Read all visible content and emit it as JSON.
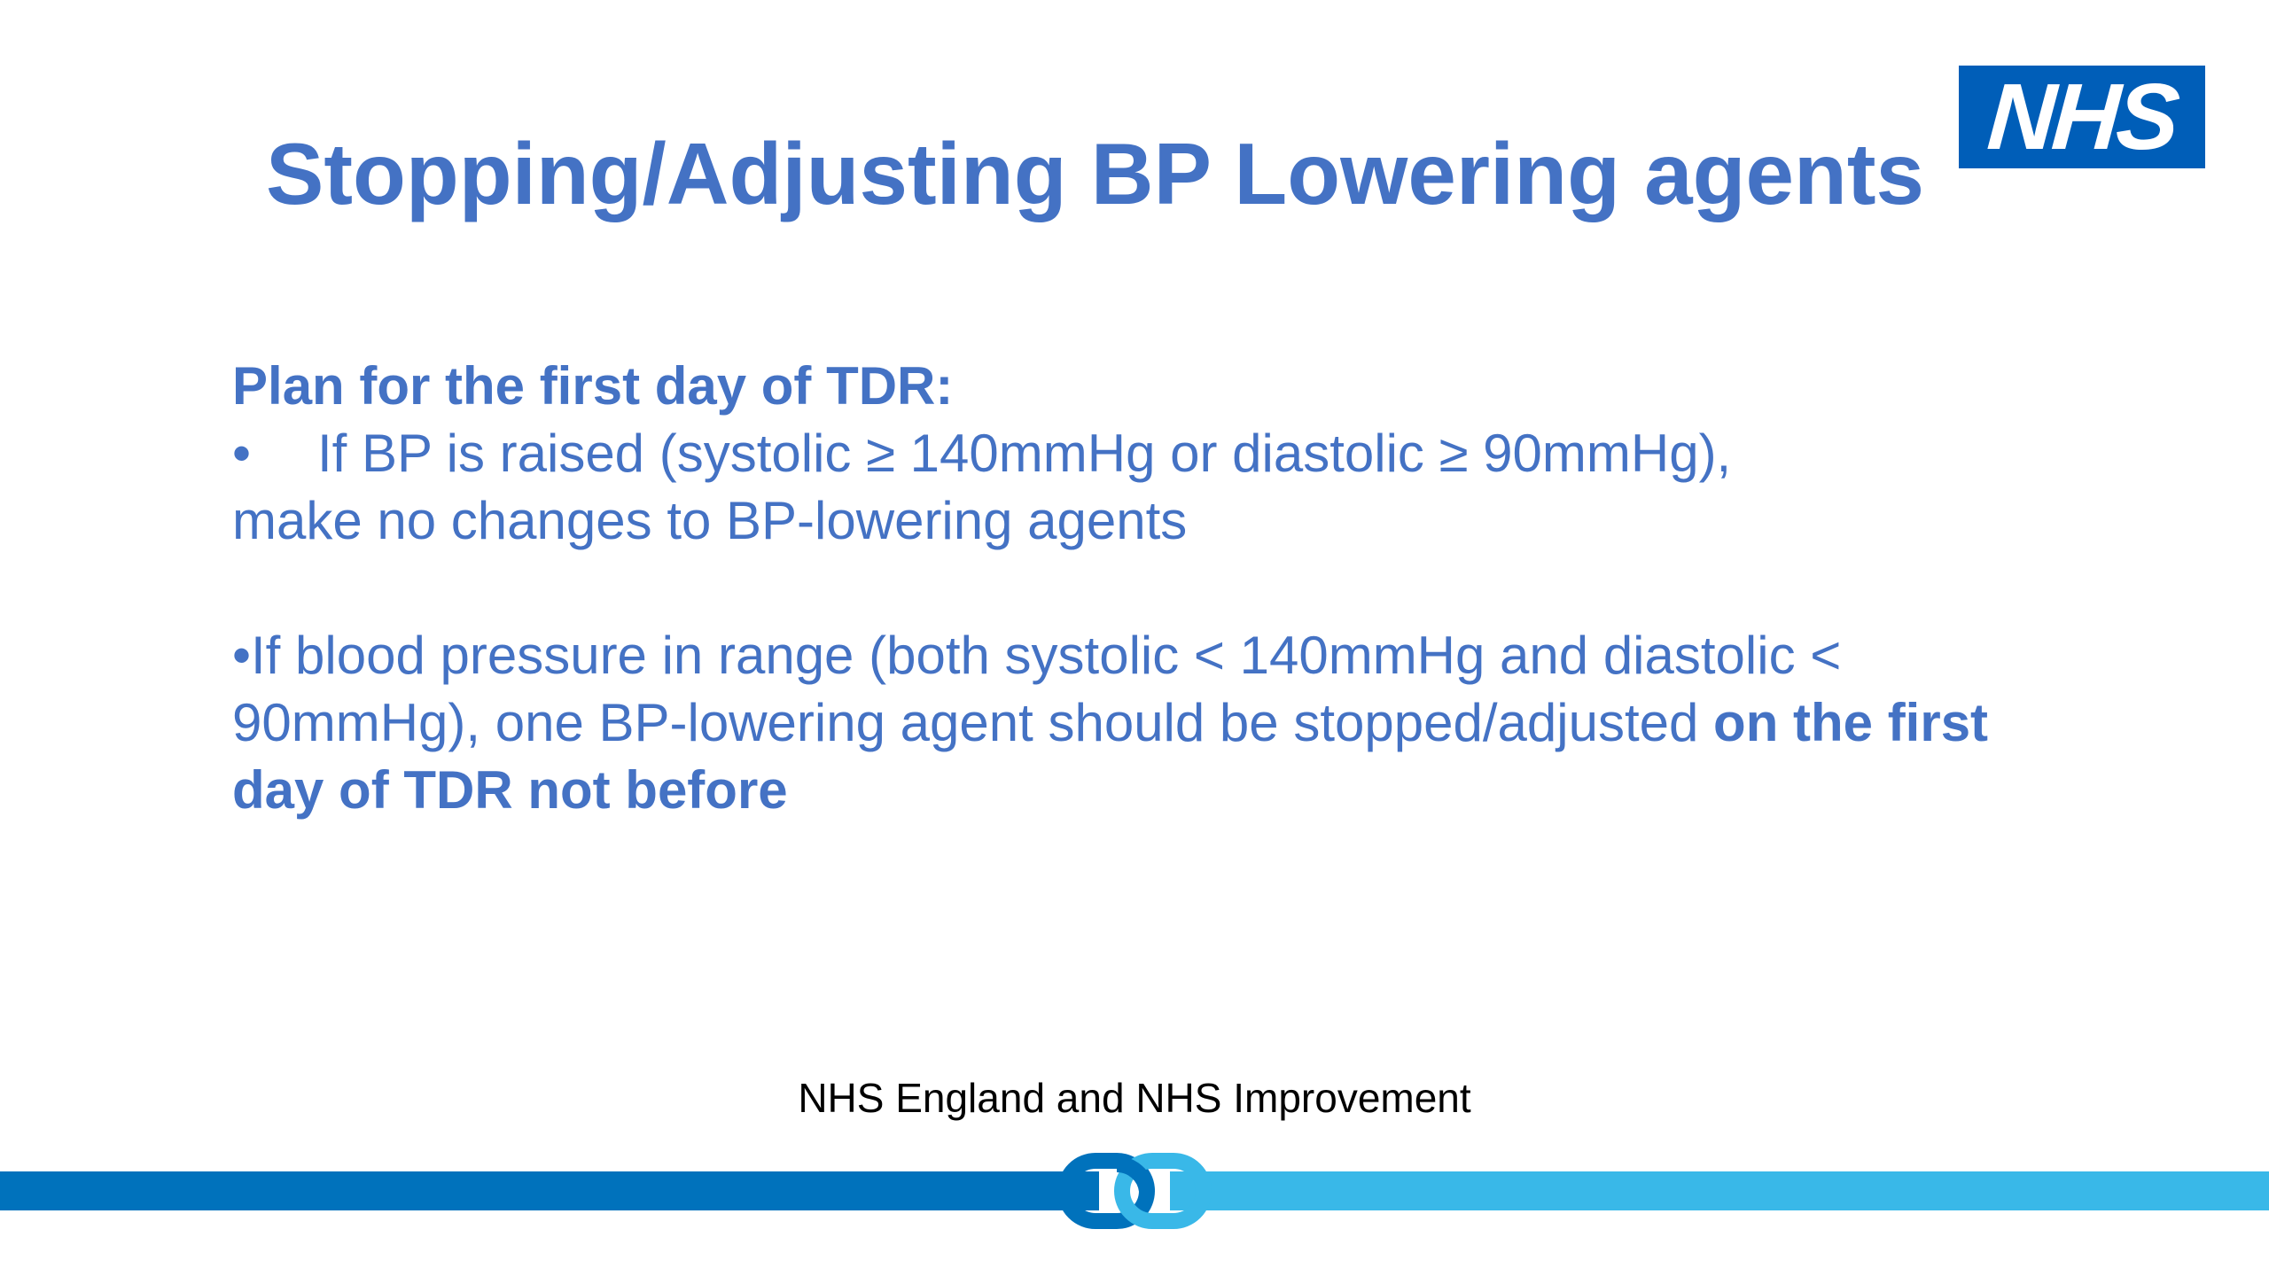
{
  "slide": {
    "title": "Stopping/Adjusting BP Lowering agents",
    "logo_text": "NHS",
    "content": {
      "heading": "Plan for the first day of TDR:",
      "bullet1_marker": "•",
      "bullet1_line1": "If BP is raised (systolic ≥ 140mmHg or diastolic ≥ 90mmHg),",
      "bullet1_line2": "make no changes to BP-lowering agents",
      "bullet2_text": "•If blood pressure in range (both systolic < 140mmHg and diastolic < 90mmHg), one BP-lowering agent should be stopped/adjusted ",
      "bullet2_bold": "on the first day of TDR not before"
    },
    "footer": "NHS England and NHS Improvement"
  },
  "colors": {
    "title": "#4472C4",
    "body_text": "#4472C4",
    "nhs_blue": "#005EB8",
    "bar_dark": "#0072BC",
    "bar_light": "#39B8E8"
  },
  "icons": {
    "logo": "nhs-logo",
    "footer_emblem": "chain-link-icon"
  }
}
